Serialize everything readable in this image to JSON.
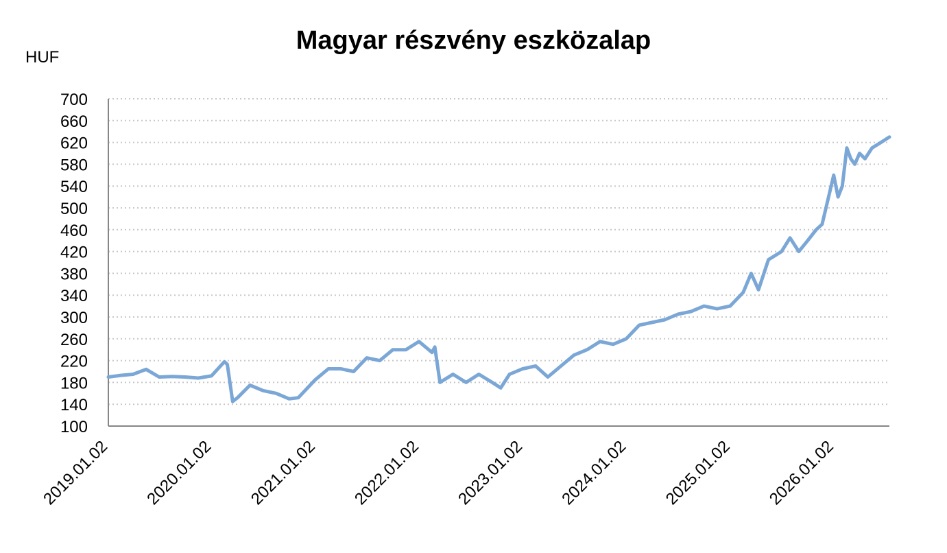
{
  "chart_data": {
    "type": "line",
    "title": "Magyar részvény eszközalap",
    "ylabel": "HUF",
    "xlabel": "",
    "ylim": [
      100,
      700
    ],
    "yticks": [
      700,
      660,
      620,
      580,
      540,
      500,
      460,
      420,
      380,
      340,
      300,
      260,
      220,
      180,
      140,
      100
    ],
    "xlim": [
      "2019.01.02",
      "2026.07.15"
    ],
    "xticks": [
      "2019.01.02",
      "2020.01.02",
      "2021.01.02",
      "2022.01.02",
      "2023.01.02",
      "2024.01.02",
      "2025.01.02",
      "2026.01.02"
    ],
    "grid": "horizontal dotted",
    "legend": "none",
    "color": "#7ba7d6",
    "series": [
      {
        "x": [
          "2019.01.02",
          "2019.02.15",
          "2019.03.30",
          "2019.05.15",
          "2019.06.30",
          "2019.08.15",
          "2019.09.30",
          "2019.11.15",
          "2019.12.31",
          "2020.02.15",
          "2020.02.25",
          "2020.03.15",
          "2020.04.01",
          "2020.05.15",
          "2020.06.30",
          "2020.08.15",
          "2020.09.30",
          "2020.11.01",
          "2020.12.31",
          "2021.02.15",
          "2021.03.30",
          "2021.05.15",
          "2021.06.30",
          "2021.08.15",
          "2021.09.30",
          "2021.11.15",
          "2021.12.31",
          "2022.02.15",
          "2022.02.25",
          "2022.03.15",
          "2022.04.30",
          "2022.06.15",
          "2022.07.30",
          "2022.09.15",
          "2022.10.15",
          "2022.11.15",
          "2022.12.31",
          "2023.02.15",
          "2023.03.30",
          "2023.05.15",
          "2023.06.30",
          "2023.08.15",
          "2023.09.30",
          "2023.11.15",
          "2023.12.31",
          "2024.02.15",
          "2024.03.30",
          "2024.05.15",
          "2024.06.30",
          "2024.08.15",
          "2024.09.30",
          "2024.11.15",
          "2024.12.31",
          "2025.02.15",
          "2025.03.15",
          "2025.04.10",
          "2025.05.15",
          "2025.06.30",
          "2025.07.30",
          "2025.08.30",
          "2025.09.30",
          "2025.10.30",
          "2025.11.20",
          "2025.12.31",
          "2026.01.15",
          "2026.01.30",
          "2026.02.15",
          "2026.03.01",
          "2026.03.15",
          "2026.04.01",
          "2026.04.20",
          "2026.05.15",
          "2026.06.15",
          "2026.07.15"
        ],
        "values": [
          190,
          193,
          195,
          204,
          190,
          191,
          190,
          188,
          192,
          218,
          213,
          145,
          152,
          175,
          165,
          160,
          150,
          152,
          185,
          205,
          205,
          200,
          225,
          220,
          240,
          240,
          255,
          235,
          245,
          180,
          195,
          180,
          195,
          180,
          170,
          195,
          205,
          210,
          190,
          210,
          230,
          240,
          255,
          250,
          260,
          285,
          290,
          295,
          305,
          310,
          320,
          315,
          320,
          345,
          380,
          350,
          405,
          420,
          445,
          420,
          440,
          460,
          470,
          560,
          520,
          540,
          610,
          590,
          580,
          600,
          590,
          610,
          620,
          630
        ]
      }
    ]
  }
}
